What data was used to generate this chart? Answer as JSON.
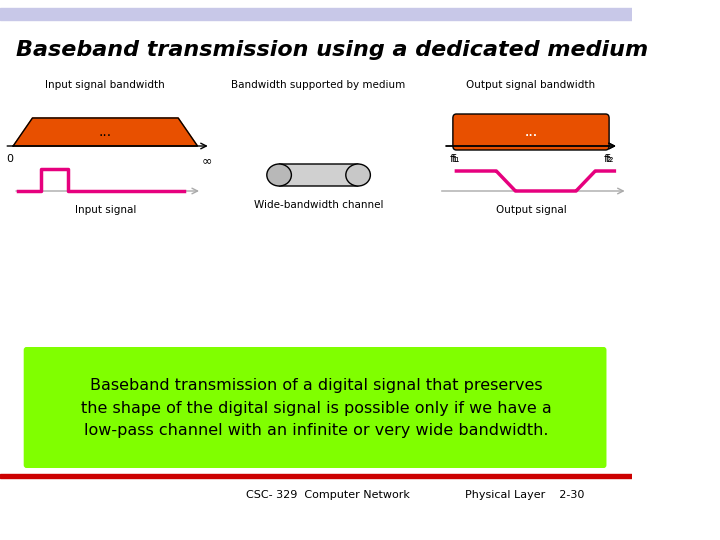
{
  "title": "Baseband transmission using a dedicated medium",
  "subtitle_text": "Baseband transmission of a digital signal that preserves\nthe shape of the digital signal is possible only if we have a\nlow-pass channel with an infinite or very wide bandwidth.",
  "footer_left": "CSC- 329  Computer Network",
  "footer_right": "Physical Layer    2-30",
  "bg_color": "#ffffff",
  "header_bar_color": "#c8c8e8",
  "bottom_bar_color": "#cc0000",
  "subtitle_bg": "#80ff00",
  "panel1_label": "Input signal bandwidth",
  "panel2_label": "Bandwidth supported by medium",
  "panel3_label": "Output signal bandwidth",
  "panel1_sig_label": "Input signal",
  "panel2_sig_label": "Wide-bandwidth channel",
  "panel3_sig_label": "Output signal",
  "orange_color": "#e85000",
  "pink_color": "#e6007e",
  "gray_color": "#aaaaaa",
  "rect_color": "#cc2200"
}
